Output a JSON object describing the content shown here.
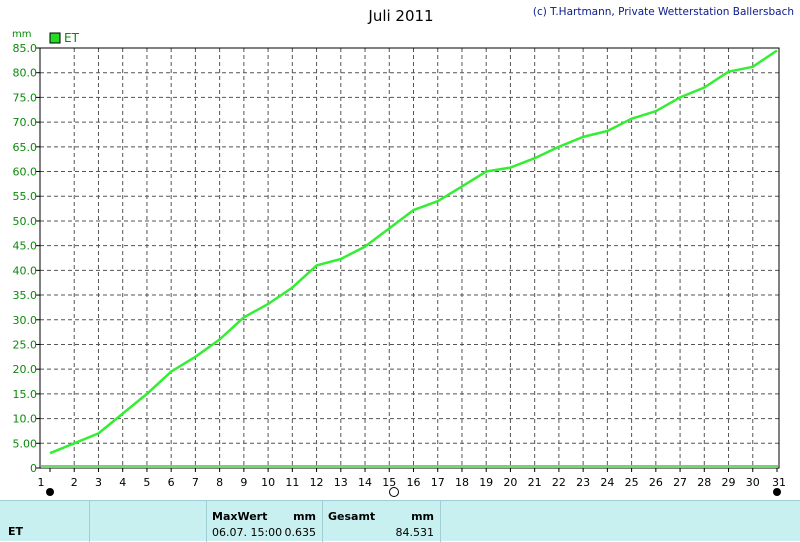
{
  "chart_data": {
    "type": "line",
    "title": "Juli 2011",
    "credit": "(c) T.Hartmann, Private Wetterstation Ballersbach",
    "ylabel": "mm",
    "legend": [
      {
        "name": "ET",
        "color": "#22dd22"
      }
    ],
    "ylim": [
      0,
      85
    ],
    "yticks": [
      "0",
      "5.00",
      "10.0",
      "15.0",
      "20.0",
      "25.0",
      "30.0",
      "35.0",
      "40.0",
      "45.0",
      "50.0",
      "55.0",
      "60.0",
      "65.0",
      "70.0",
      "75.0",
      "80.0",
      "85.0"
    ],
    "xlim": [
      1,
      31
    ],
    "xticks": [
      "1",
      "2",
      "3",
      "4",
      "5",
      "6",
      "7",
      "8",
      "9",
      "10",
      "11",
      "12",
      "13",
      "14",
      "15",
      "16",
      "17",
      "18",
      "19",
      "20",
      "21",
      "22",
      "23",
      "24",
      "25",
      "26",
      "27",
      "28",
      "29",
      "30",
      "31"
    ],
    "grid": true,
    "series": [
      {
        "name": "ET",
        "color": "#33ee33",
        "x": [
          1,
          2,
          3,
          4,
          5,
          6,
          7,
          8,
          9,
          10,
          11,
          12,
          13,
          14,
          15,
          16,
          17,
          18,
          19,
          20,
          21,
          22,
          23,
          24,
          25,
          26,
          27,
          28,
          29,
          30,
          31
        ],
        "values": [
          3.0,
          5.0,
          7.0,
          11.0,
          15.0,
          19.5,
          22.5,
          26.0,
          30.5,
          33.2,
          36.5,
          41.0,
          42.3,
          44.8,
          48.5,
          52.2,
          54.0,
          57.0,
          60.0,
          60.8,
          62.7,
          65.0,
          67.0,
          68.2,
          70.7,
          72.2,
          75.0,
          77.0,
          80.2,
          81.2,
          84.5
        ]
      }
    ]
  },
  "footer": {
    "series_label": "ET",
    "maxwert_label": "MaxWert",
    "maxwert_unit": "mm",
    "maxwert_date": "06.07. 15:00",
    "maxwert_value": "0.635",
    "gesamt_label": "Gesamt",
    "gesamt_unit": "mm",
    "gesamt_value": "84.531"
  }
}
